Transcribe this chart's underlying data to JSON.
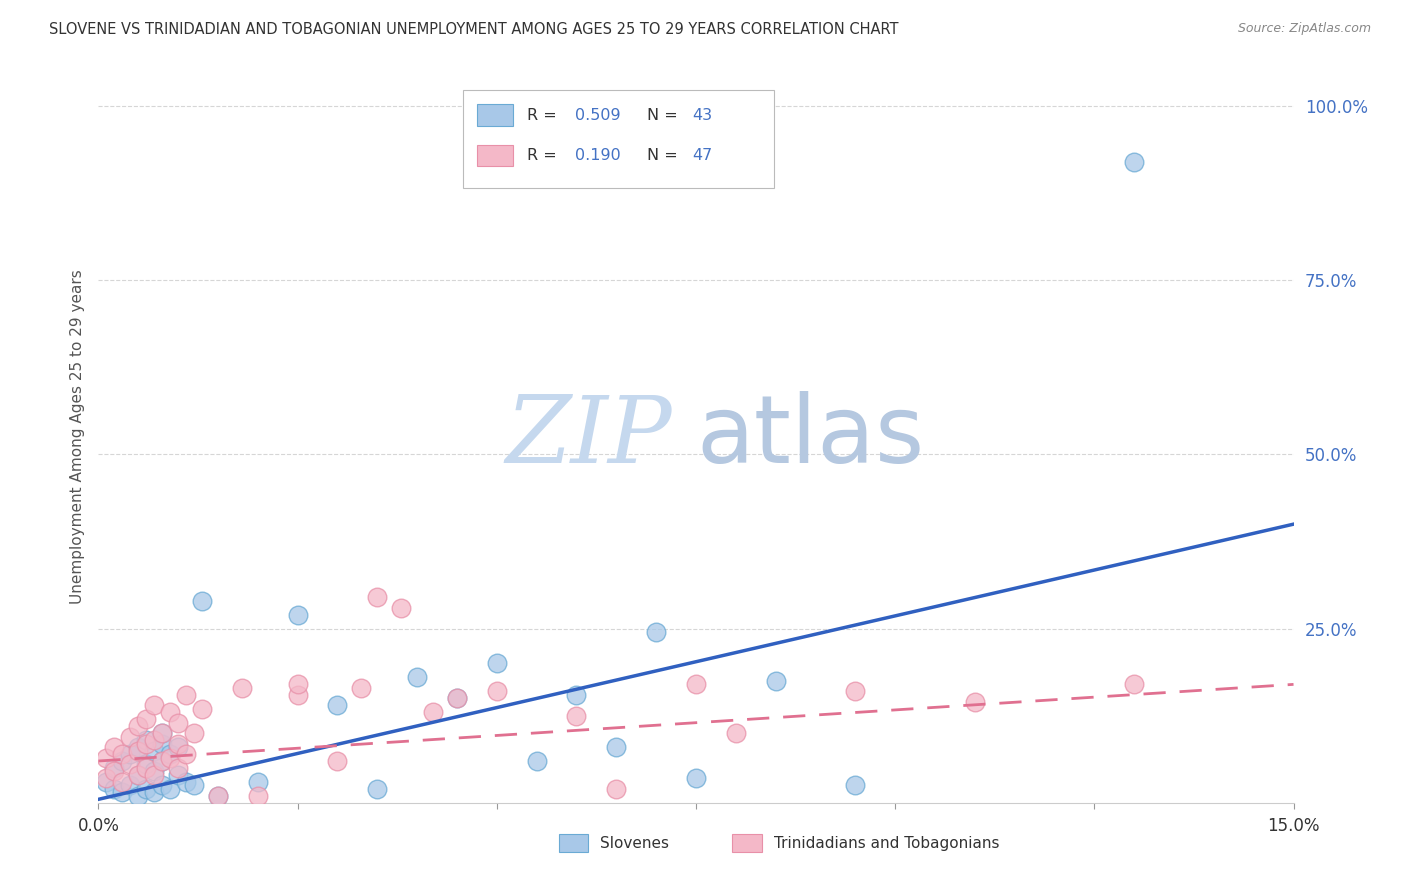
{
  "title": "SLOVENE VS TRINIDADIAN AND TOBAGONIAN UNEMPLOYMENT AMONG AGES 25 TO 29 YEARS CORRELATION CHART",
  "source": "Source: ZipAtlas.com",
  "ylabel": "Unemployment Among Ages 25 to 29 years",
  "xlim": [
    0.0,
    0.15
  ],
  "ylim": [
    0.0,
    1.05
  ],
  "xtick_positions": [
    0.0,
    0.025,
    0.05,
    0.075,
    0.1,
    0.125,
    0.15
  ],
  "xtick_labels": [
    "0.0%",
    "",
    "",
    "",
    "",
    "",
    "15.0%"
  ],
  "ytick_positions_right": [
    0.25,
    0.5,
    0.75,
    1.0
  ],
  "ytick_labels_right": [
    "25.0%",
    "50.0%",
    "75.0%",
    "100.0%"
  ],
  "slovene_color": "#a8c8e8",
  "slovene_edge_color": "#6aaad4",
  "trinidadian_color": "#f4b8c8",
  "trinidadian_edge_color": "#e890a8",
  "slovene_line_color": "#3060c0",
  "trinidadian_line_color": "#e07090",
  "R_slovene": 0.509,
  "N_slovene": 43,
  "R_trinidadian": 0.19,
  "N_trinidadian": 47,
  "background_color": "#ffffff",
  "grid_color": "#cccccc",
  "watermark_zip_color": "#c8d8ee",
  "watermark_atlas_color": "#b8cce0",
  "legend_slovenes": "Slovenes",
  "legend_trinidadians": "Trinidadians and Tobagonians",
  "slovene_x": [
    0.001,
    0.002,
    0.002,
    0.003,
    0.003,
    0.004,
    0.004,
    0.005,
    0.005,
    0.005,
    0.006,
    0.006,
    0.006,
    0.007,
    0.007,
    0.007,
    0.008,
    0.008,
    0.008,
    0.008,
    0.009,
    0.009,
    0.01,
    0.01,
    0.011,
    0.012,
    0.013,
    0.015,
    0.02,
    0.025,
    0.03,
    0.035,
    0.04,
    0.045,
    0.05,
    0.055,
    0.06,
    0.065,
    0.07,
    0.075,
    0.085,
    0.095,
    0.13
  ],
  "slovene_y": [
    0.03,
    0.02,
    0.05,
    0.015,
    0.06,
    0.025,
    0.07,
    0.01,
    0.04,
    0.08,
    0.02,
    0.055,
    0.09,
    0.015,
    0.045,
    0.075,
    0.025,
    0.06,
    0.085,
    0.1,
    0.02,
    0.07,
    0.04,
    0.08,
    0.03,
    0.025,
    0.29,
    0.01,
    0.03,
    0.27,
    0.14,
    0.02,
    0.18,
    0.15,
    0.2,
    0.06,
    0.155,
    0.08,
    0.245,
    0.035,
    0.175,
    0.025,
    0.92
  ],
  "trinidadian_x": [
    0.001,
    0.001,
    0.002,
    0.002,
    0.003,
    0.003,
    0.004,
    0.004,
    0.005,
    0.005,
    0.005,
    0.006,
    0.006,
    0.006,
    0.007,
    0.007,
    0.007,
    0.008,
    0.008,
    0.009,
    0.009,
    0.01,
    0.01,
    0.01,
    0.011,
    0.011,
    0.012,
    0.013,
    0.015,
    0.018,
    0.02,
    0.025,
    0.025,
    0.03,
    0.033,
    0.035,
    0.038,
    0.042,
    0.045,
    0.05,
    0.06,
    0.065,
    0.075,
    0.08,
    0.095,
    0.11,
    0.13
  ],
  "trinidadian_y": [
    0.035,
    0.065,
    0.045,
    0.08,
    0.03,
    0.07,
    0.055,
    0.095,
    0.04,
    0.075,
    0.11,
    0.05,
    0.085,
    0.12,
    0.04,
    0.09,
    0.14,
    0.06,
    0.1,
    0.065,
    0.13,
    0.05,
    0.085,
    0.115,
    0.07,
    0.155,
    0.1,
    0.135,
    0.01,
    0.165,
    0.01,
    0.155,
    0.17,
    0.06,
    0.165,
    0.295,
    0.28,
    0.13,
    0.15,
    0.16,
    0.125,
    0.02,
    0.17,
    0.1,
    0.16,
    0.145,
    0.17
  ]
}
